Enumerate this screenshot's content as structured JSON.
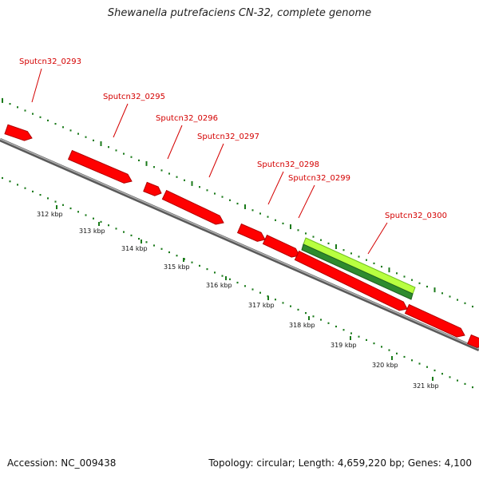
{
  "title": "Shewanella putrefaciens CN-32, complete genome",
  "footer": {
    "accession": "Accession: NC_009438",
    "summary": "Topology: circular; Length: 4,659,220 bp; Genes: 4,100"
  },
  "colors": {
    "gene": "#ff0000",
    "gene_dark": "#b00000",
    "highlight_outer": "#a8ff2a",
    "highlight_inner": "#2e8b2e",
    "backbone": "#9a9a9a",
    "ruler_ticks": "#1a7a1a",
    "label": "#d40000"
  },
  "genes": [
    {
      "name": "Sputcn32_0293"
    },
    {
      "name": "Sputcn32_0295"
    },
    {
      "name": "Sputcn32_0296"
    },
    {
      "name": "Sputcn32_0297"
    },
    {
      "name": "Sputcn32_0298"
    },
    {
      "name": "Sputcn32_0299"
    },
    {
      "name": "Sputcn32_0300"
    }
  ],
  "ruler": {
    "labels": [
      "312 kbp",
      "313 kbp",
      "314 kbp",
      "315 kbp",
      "316 kbp",
      "317 kbp",
      "318 kbp",
      "319 kbp",
      "320 kbp",
      "321 kbp"
    ]
  }
}
